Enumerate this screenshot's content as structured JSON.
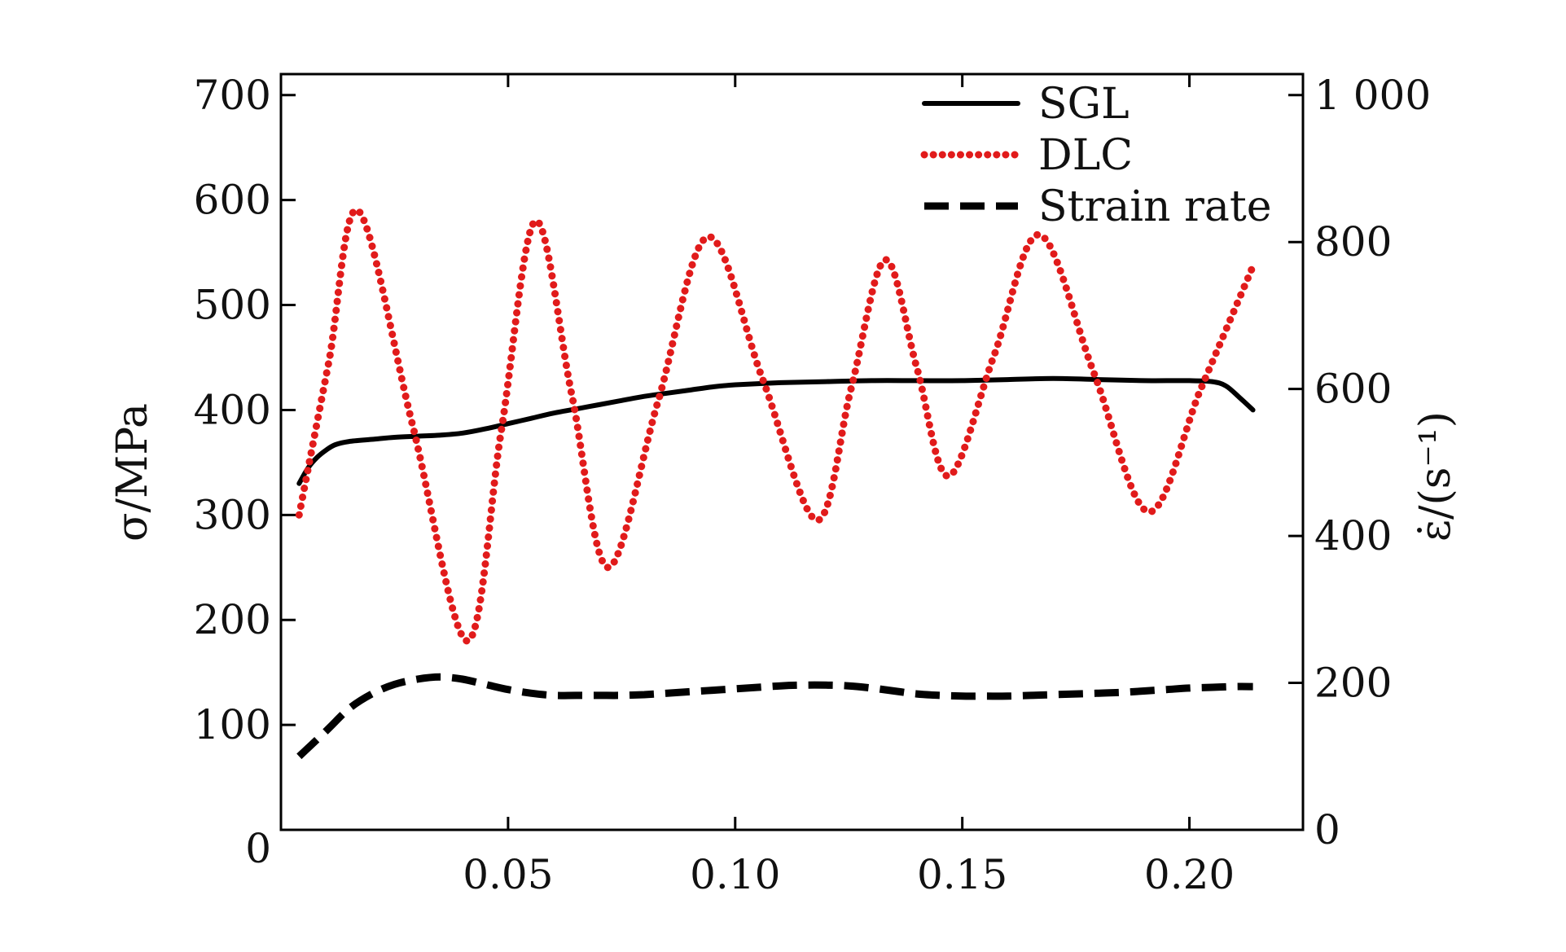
{
  "chart_data": {
    "type": "line",
    "xlabel": "",
    "ylabel_left": "σ/MPa",
    "ylabel_right": "ε̇/(s⁻¹)",
    "xlim": [
      0.0,
      0.225
    ],
    "ylim_left": [
      0,
      720
    ],
    "ylim_right": [
      0,
      1028.6
    ],
    "x_ticks": [
      0.05,
      0.1,
      0.15,
      0.2
    ],
    "x_tick_labels": [
      "0.05",
      "0.10",
      "0.15",
      "0.20"
    ],
    "y_left_ticks": [
      0,
      100,
      200,
      300,
      400,
      500,
      600,
      700
    ],
    "y_left_tick_labels": [
      "0",
      "100",
      "200",
      "300",
      "400",
      "500",
      "600",
      "700"
    ],
    "y_right_ticks": [
      0,
      200,
      400,
      600,
      800,
      1000
    ],
    "y_right_tick_labels": [
      "0",
      "200",
      "400",
      "600",
      "800",
      "1 000"
    ],
    "grid": false,
    "legend": "top-right",
    "series": [
      {
        "name": "SGL",
        "axis": "left",
        "color": "#000000",
        "style": "solid",
        "x": [
          0.004,
          0.006,
          0.008,
          0.01,
          0.012,
          0.015,
          0.02,
          0.025,
          0.03,
          0.035,
          0.04,
          0.045,
          0.05,
          0.055,
          0.06,
          0.065,
          0.07,
          0.075,
          0.08,
          0.085,
          0.09,
          0.095,
          0.1,
          0.11,
          0.12,
          0.13,
          0.14,
          0.15,
          0.16,
          0.17,
          0.18,
          0.19,
          0.2,
          0.205,
          0.208,
          0.211,
          0.214
        ],
        "y": [
          330,
          345,
          355,
          362,
          367,
          370,
          372,
          374,
          375,
          376,
          378,
          382,
          387,
          392,
          397,
          401,
          405,
          409,
          413,
          416,
          419,
          422,
          424,
          426,
          427,
          428,
          428,
          428,
          429,
          430,
          429,
          428,
          428,
          427,
          423,
          412,
          400
        ]
      },
      {
        "name": "DLC",
        "axis": "left",
        "color": "#e11b1b",
        "style": "dotted",
        "x": [
          0.004,
          0.0105,
          0.017,
          0.029,
          0.041,
          0.0485,
          0.056,
          0.064,
          0.072,
          0.083,
          0.094,
          0.106,
          0.118,
          0.1255,
          0.133,
          0.14,
          0.147,
          0.157,
          0.167,
          0.179,
          0.191,
          0.2025,
          0.214
        ],
        "y": [
          300,
          445,
          590,
          385,
          180,
          380,
          580,
          415,
          250,
          408,
          565,
          430,
          295,
          420,
          543,
          440,
          337,
          452,
          567,
          435,
          303,
          420,
          537
        ]
      },
      {
        "name": "Strain rate",
        "axis": "right",
        "color": "#000000",
        "style": "dashed",
        "x": [
          0.004,
          0.01,
          0.015,
          0.02,
          0.025,
          0.03,
          0.035,
          0.04,
          0.045,
          0.05,
          0.055,
          0.06,
          0.065,
          0.07,
          0.075,
          0.08,
          0.085,
          0.09,
          0.095,
          0.1,
          0.105,
          0.11,
          0.115,
          0.12,
          0.125,
          0.13,
          0.135,
          0.14,
          0.145,
          0.15,
          0.155,
          0.16,
          0.165,
          0.17,
          0.175,
          0.18,
          0.185,
          0.19,
          0.195,
          0.2,
          0.205,
          0.21,
          0.214
        ],
        "y": [
          100,
          135,
          165,
          185,
          198,
          205,
          208,
          205,
          198,
          191,
          186,
          183,
          183,
          183,
          183,
          184,
          186,
          188,
          190,
          192,
          194,
          196,
          197,
          197,
          196,
          193,
          189,
          185,
          183,
          182,
          182,
          182,
          183,
          184,
          185,
          186,
          187,
          189,
          191,
          193,
          194,
          195,
          195
        ]
      }
    ]
  }
}
